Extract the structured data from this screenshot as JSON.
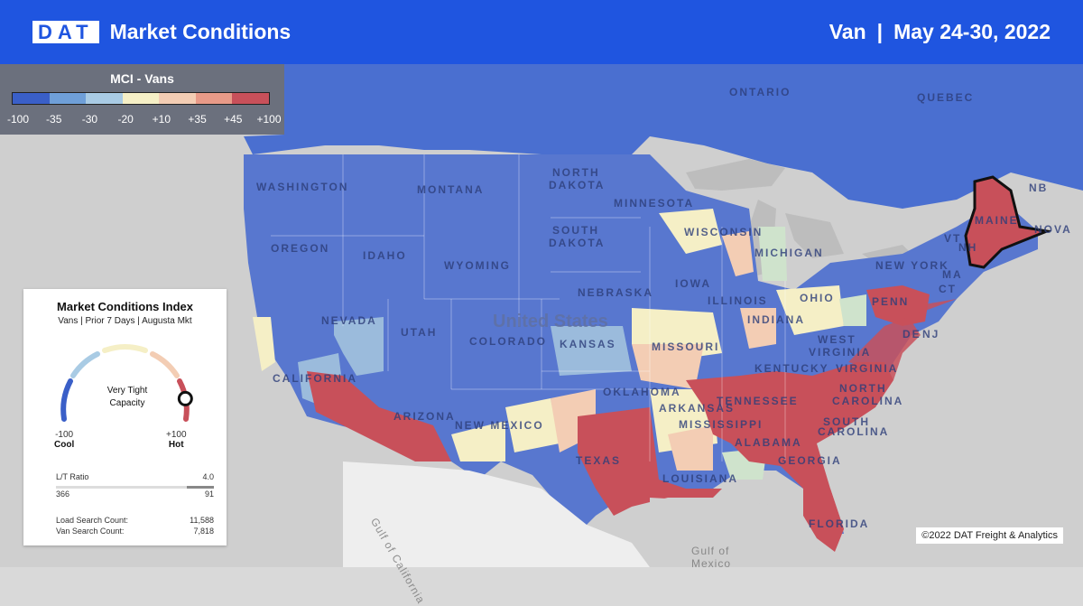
{
  "header": {
    "logo": "DAT",
    "title": "Market Conditions",
    "equipment": "Van",
    "separator": "|",
    "date_range": "May 24-30, 2022"
  },
  "legend": {
    "title": "MCI - Vans",
    "colors": [
      "#3a5fc8",
      "#6f9fd8",
      "#a9cbe4",
      "#f5efc6",
      "#f3cdb4",
      "#e89a88",
      "#c8505a"
    ],
    "ticks": [
      "-100",
      "-35",
      "-30",
      "-20",
      "+10",
      "+35",
      "+45",
      "+100"
    ]
  },
  "map_labels": {
    "ontario": "ONTARIO",
    "quebec": "QUEBEC",
    "north_dakota_1": "NORTH",
    "north_dakota_2": "DAKOTA",
    "montana": "MONTANA",
    "washington": "WASHINGTON",
    "minnesota": "MINNESOTA",
    "south_dakota_1": "SOUTH",
    "south_dakota_2": "DAKOTA",
    "wisconsin": "WISCONSIN",
    "michigan": "MICHIGAN",
    "oregon": "OREGON",
    "idaho": "IDAHO",
    "wyoming": "WYOMING",
    "iowa": "IOWA",
    "nebraska": "NEBRASKA",
    "illinois": "ILLINOIS",
    "ohio": "OHIO",
    "new_york": "NEW YORK",
    "penn": "PENN",
    "maine": "MAINE",
    "vt": "VT",
    "nh": "NH",
    "ma": "MA",
    "ct": "CT",
    "nj": "NJ",
    "de": "DE",
    "nb": "NB",
    "nova": "NOVA",
    "nevada": "NEVADA",
    "utah": "UTAH",
    "colorado": "COLORADO",
    "kansas": "KANSAS",
    "missouri": "MISSOURI",
    "indiana": "INDIANA",
    "west_virginia_1": "WEST",
    "west_virginia_2": "VIRGINIA",
    "kentucky": "KENTUCKY",
    "virginia": "VIRGINIA",
    "california": "CALIFORNIA",
    "arizona": "ARIZONA",
    "new_mexico": "NEW MEXICO",
    "oklahoma": "OKLAHOMA",
    "arkansas": "ARKANSAS",
    "tennessee": "TENNESSEE",
    "north_carolina_1": "NORTH",
    "north_carolina_2": "CAROLINA",
    "south_carolina_1": "SOUTH",
    "south_carolina_2": "CAROLINA",
    "mississippi": "MISSISSIPPI",
    "alabama": "ALABAMA",
    "georgia": "GEORGIA",
    "texas": "TEXAS",
    "louisiana": "LOUISIANA",
    "florida": "FLORIDA",
    "united_states": "United States",
    "gulf_mexico_1": "Gulf of",
    "gulf_mexico_2": "Mexico",
    "gulf_california": "Gulf of California"
  },
  "card": {
    "title": "Market Conditions Index",
    "subtitle": "Vans | Prior 7 Days | Augusta Mkt",
    "status_line1": "Very Tight",
    "status_line2": "Capacity",
    "min_value": "-100",
    "min_label": "Cool",
    "max_value": "+100",
    "max_label": "Hot",
    "gauge_level": 0.88,
    "lt_ratio_label": "L/T Ratio",
    "lt_ratio_value": "4.0",
    "lt_left": "366",
    "lt_right": "91",
    "load_search_label": "Load Search Count:",
    "load_search_value": "11,588",
    "van_search_label": "Van Search Count:",
    "van_search_value": "7,818"
  },
  "copyright": "©2022 DAT Freight & Analytics"
}
